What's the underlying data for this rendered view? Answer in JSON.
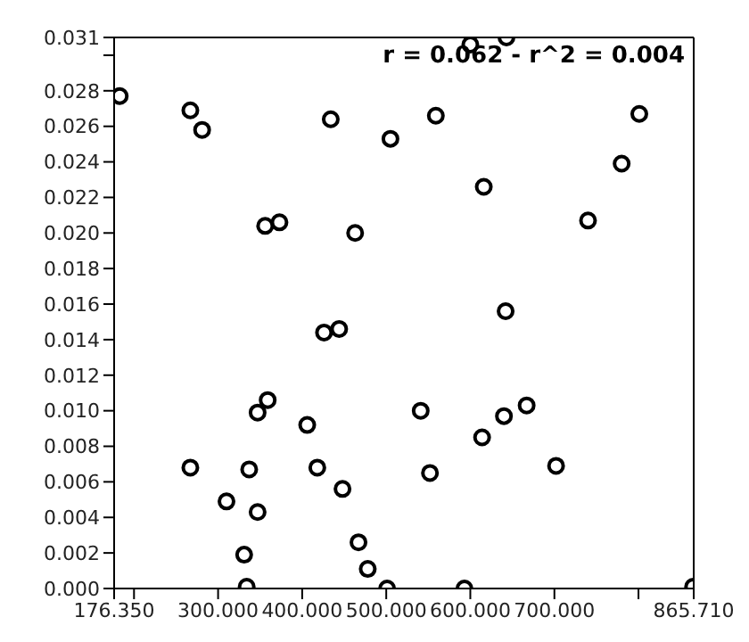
{
  "chart_data": {
    "type": "scatter",
    "annotations": [
      "r = 0.062 - r^2 = 0.004"
    ],
    "marker": "circle",
    "series": [
      {
        "color": "#000000",
        "x": [
          183,
          267,
          281,
          356,
          373,
          434,
          463,
          600,
          643,
          559,
          505,
          616,
          801,
          780,
          740,
          642,
          426,
          444,
          359,
          347,
          406,
          267,
          337,
          418,
          448,
          310,
          347,
          467,
          331,
          478,
          334,
          541,
          552,
          614,
          640,
          667,
          702,
          501,
          593,
          865
        ],
        "values": [
          0.0277,
          0.0269,
          0.0258,
          0.0204,
          0.0206,
          0.0264,
          0.02,
          0.0306,
          0.031,
          0.0266,
          0.0253,
          0.0226,
          0.0267,
          0.0239,
          0.0207,
          0.0156,
          0.0144,
          0.0146,
          0.0106,
          0.0099,
          0.0092,
          0.0068,
          0.0067,
          0.0068,
          0.0056,
          0.0049,
          0.0043,
          0.0026,
          0.0019,
          0.0011,
          0.0001,
          0.01,
          0.0065,
          0.0085,
          0.0097,
          0.0103,
          0.0069,
          0.0,
          0.0,
          0.0001
        ]
      }
    ],
    "xlim": [
      176.35,
      865.71
    ],
    "xticks": [
      {
        "value": 176.35,
        "label": "176.350"
      },
      {
        "value": 200,
        "label": null
      },
      {
        "value": 300,
        "label": "300.000"
      },
      {
        "value": 400,
        "label": "400.000"
      },
      {
        "value": 500,
        "label": "500.000"
      },
      {
        "value": 600,
        "label": "600.000"
      },
      {
        "value": 700,
        "label": "700.000"
      },
      {
        "value": 800,
        "label": null
      },
      {
        "value": 865.71,
        "label": "865.710"
      }
    ],
    "ylim": [
      0,
      0.031
    ],
    "yticks": [
      {
        "value": 0,
        "label": "0.000"
      },
      {
        "value": 0.002,
        "label": "0.002"
      },
      {
        "value": 0.004,
        "label": "0.004"
      },
      {
        "value": 0.006,
        "label": "0.006"
      },
      {
        "value": 0.008,
        "label": "0.008"
      },
      {
        "value": 0.01,
        "label": "0.010"
      },
      {
        "value": 0.012,
        "label": "0.012"
      },
      {
        "value": 0.014,
        "label": "0.014"
      },
      {
        "value": 0.016,
        "label": "0.016"
      },
      {
        "value": 0.018,
        "label": "0.018"
      },
      {
        "value": 0.02,
        "label": "0.020"
      },
      {
        "value": 0.022,
        "label": "0.022"
      },
      {
        "value": 0.024,
        "label": "0.024"
      },
      {
        "value": 0.026,
        "label": "0.026"
      },
      {
        "value": 0.028,
        "label": "0.028"
      },
      {
        "value": 0.03,
        "label": null
      },
      {
        "value": 0.031,
        "label": "0.031"
      }
    ]
  }
}
